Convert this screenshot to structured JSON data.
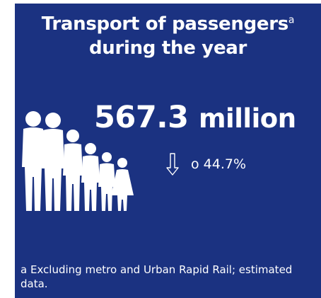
{
  "title": {
    "line1": "Transport of passengers",
    "sup": "a",
    "line2": "during the year"
  },
  "figure": {
    "value": "567.3",
    "unit": "million"
  },
  "change": {
    "icon": "down-arrow-icon",
    "text": "o 44.7%"
  },
  "illustration": {
    "icon": "people-family-icon"
  },
  "footnote": "a Excluding metro and Urban Rapid Rail; estimated data.",
  "colors": {
    "background": "#1b3281",
    "foreground": "#ffffff"
  }
}
